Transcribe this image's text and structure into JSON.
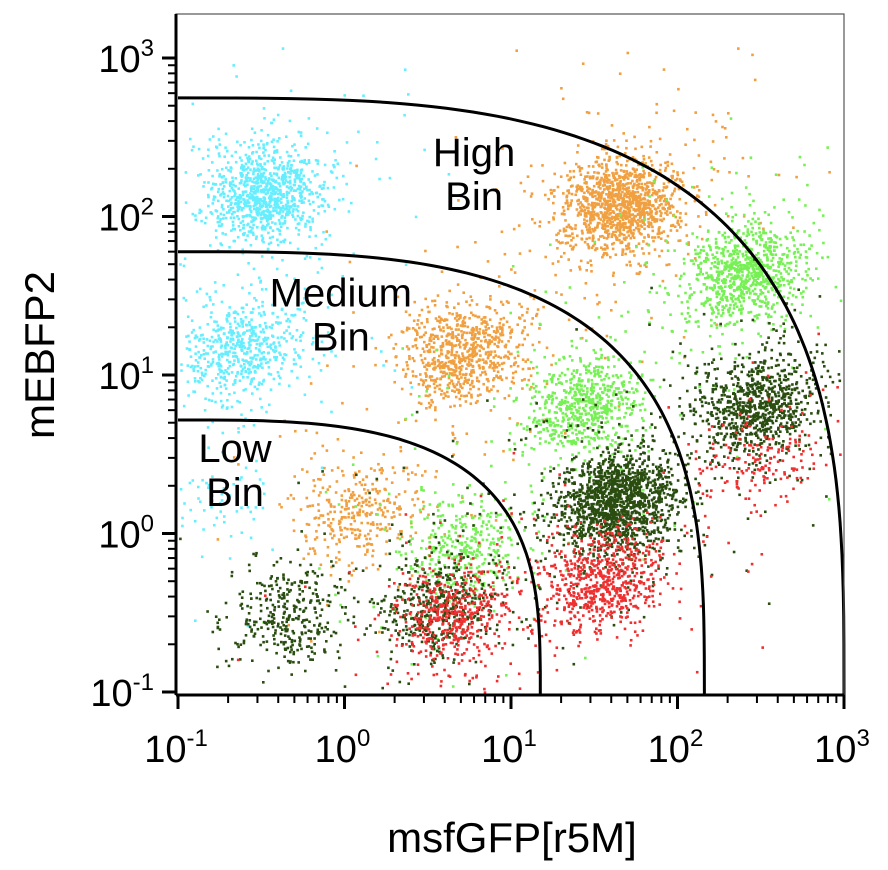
{
  "chart_data": {
    "type": "scatter",
    "title": "",
    "xlabel": "msfGFP[r5M]",
    "ylabel": "mEBFP2",
    "x_scale": "log",
    "y_scale": "log",
    "xlim": [
      0.1,
      1000
    ],
    "ylim": [
      0.1,
      2000
    ],
    "x_ticks": [
      {
        "value": 0.1,
        "base": "10",
        "exp": "-1"
      },
      {
        "value": 1,
        "base": "10",
        "exp": "0"
      },
      {
        "value": 10,
        "base": "10",
        "exp": "1"
      },
      {
        "value": 100,
        "base": "10",
        "exp": "2"
      },
      {
        "value": 1000,
        "base": "10",
        "exp": "3"
      }
    ],
    "y_ticks": [
      {
        "value": 0.1,
        "base": "10",
        "exp": "-1"
      },
      {
        "value": 1,
        "base": "10",
        "exp": "0"
      },
      {
        "value": 10,
        "base": "10",
        "exp": "1"
      },
      {
        "value": 100,
        "base": "10",
        "exp": "2"
      },
      {
        "value": 1000,
        "base": "10",
        "exp": "3"
      }
    ],
    "grid": false,
    "legend": "none",
    "gates": [
      {
        "label_lines": [
          "Low",
          "Bin"
        ],
        "label_at": [
          0.22,
          2.3
        ],
        "y_at_xmin": 5.2,
        "x_at_ymin": 15
      },
      {
        "label_lines": [
          "Medium",
          "Bin"
        ],
        "label_at": [
          0.95,
          22
        ],
        "y_at_xmin": 60,
        "x_at_ymin": 145
      },
      {
        "label_lines": [
          "High",
          "Bin"
        ],
        "label_at": [
          6,
          170
        ],
        "y_at_xmin": 560,
        "x_at_ymin": 1000
      }
    ],
    "populations": [
      {
        "color": "#66eeff",
        "clusters": [
          {
            "x": 0.32,
            "y": 140,
            "count": 1000
          },
          {
            "x": 0.24,
            "y": 15,
            "count": 600
          },
          {
            "x": 0.15,
            "y": 1.6,
            "count": 90
          }
        ]
      },
      {
        "color": "#f0a040",
        "clusters": [
          {
            "x": 45,
            "y": 120,
            "count": 1300
          },
          {
            "x": 5,
            "y": 14,
            "count": 800
          },
          {
            "x": 1.2,
            "y": 1.4,
            "count": 350
          }
        ]
      },
      {
        "color": "#77f055",
        "clusters": [
          {
            "x": 250,
            "y": 45,
            "count": 900
          },
          {
            "x": 28,
            "y": 6.5,
            "count": 700
          },
          {
            "x": 5,
            "y": 0.8,
            "count": 400
          }
        ]
      },
      {
        "color": "#2a4d10",
        "clusters": [
          {
            "x": 300,
            "y": 6.5,
            "count": 900
          },
          {
            "x": 42,
            "y": 1.6,
            "count": 1600
          },
          {
            "x": 3.5,
            "y": 0.35,
            "count": 500
          },
          {
            "x": 0.45,
            "y": 0.3,
            "count": 350
          }
        ]
      },
      {
        "color": "#ee3030",
        "clusters": [
          {
            "x": 300,
            "y": 3.0,
            "count": 180
          },
          {
            "x": 35,
            "y": 0.5,
            "count": 700
          },
          {
            "x": 4.5,
            "y": 0.3,
            "count": 500
          }
        ]
      }
    ]
  }
}
